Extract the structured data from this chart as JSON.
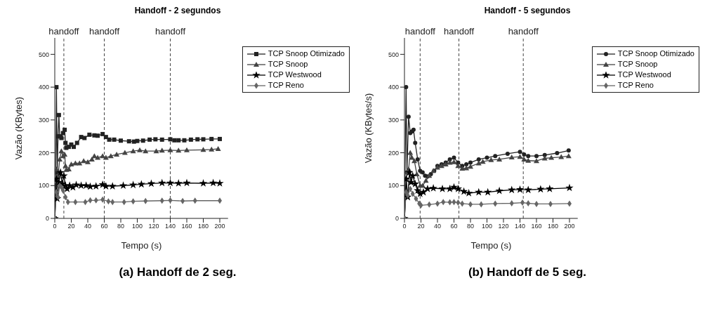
{
  "chart_data": [
    {
      "type": "line",
      "title": "Handoff - 2 segundos",
      "xlabel": "Tempo (s)",
      "ylabel": "Vazão (KBytes)",
      "xlim": [
        0,
        210
      ],
      "xticks": [
        0,
        20,
        40,
        60,
        80,
        100,
        120,
        140,
        160,
        180,
        200
      ],
      "ylim": [
        0,
        550
      ],
      "yticks": [
        0,
        100,
        200,
        300,
        400,
        500
      ],
      "legend": "top right",
      "grid": false,
      "annotations": [
        "(a) Handoff de 2 seg."
      ],
      "ref_lines": [
        {
          "axis": "x",
          "value": 11,
          "label": "handoff",
          "line_style": "dashed"
        },
        {
          "axis": "x",
          "value": 60,
          "label": "handoff",
          "line_style": "dashed"
        },
        {
          "axis": "x",
          "value": 140,
          "label": "handoff",
          "line_style": "dashed"
        }
      ],
      "series": [
        {
          "name": "TCP Snoop Otimizado",
          "color": "#222222",
          "marker": "square",
          "x": [
            0,
            1,
            2,
            3,
            4,
            5,
            6,
            8,
            10,
            12,
            13,
            14,
            17,
            20,
            23,
            27,
            32,
            36,
            42,
            48,
            52,
            58,
            62,
            66,
            72,
            80,
            90,
            96,
            100,
            107,
            115,
            122,
            130,
            140,
            145,
            150,
            157,
            165,
            173,
            180,
            190,
            200
          ],
          "values": [
            0,
            100,
            400,
            140,
            250,
            315,
            250,
            245,
            260,
            270,
            230,
            215,
            218,
            225,
            218,
            230,
            248,
            245,
            255,
            253,
            252,
            257,
            248,
            240,
            240,
            237,
            235,
            234,
            236,
            237,
            240,
            241,
            240,
            241,
            238,
            238,
            238,
            240,
            241,
            241,
            242,
            242
          ]
        },
        {
          "name": "TCP Snoop",
          "color": "#444444",
          "marker": "triangle",
          "x": [
            0,
            2,
            4,
            6,
            8,
            10,
            12,
            13,
            14,
            17,
            20,
            25,
            30,
            35,
            40,
            45,
            48,
            52,
            58,
            62,
            68,
            75,
            85,
            95,
            103,
            110,
            123,
            130,
            140,
            150,
            160,
            180,
            190,
            198
          ],
          "values": [
            0,
            150,
            130,
            180,
            205,
            190,
            195,
            160,
            148,
            150,
            165,
            168,
            168,
            175,
            172,
            180,
            190,
            185,
            190,
            185,
            190,
            195,
            200,
            205,
            208,
            205,
            205,
            207,
            208,
            207,
            208,
            209,
            210,
            212
          ]
        },
        {
          "name": "TCP Westwood",
          "color": "#000000",
          "marker": "star",
          "x": [
            0,
            2,
            3,
            5,
            7,
            9,
            11,
            13,
            15,
            18,
            22,
            26,
            32,
            38,
            43,
            50,
            58,
            62,
            70,
            83,
            95,
            105,
            117,
            130,
            140,
            150,
            160,
            180,
            192,
            200
          ],
          "values": [
            0,
            120,
            60,
            110,
            140,
            105,
            130,
            100,
            90,
            100,
            95,
            102,
            100,
            100,
            97,
            98,
            103,
            98,
            98,
            100,
            102,
            104,
            106,
            108,
            108,
            107,
            108,
            107,
            108,
            107
          ]
        },
        {
          "name": "TCP Reno",
          "color": "#666666",
          "marker": "diamond",
          "x": [
            0,
            2,
            4,
            6,
            8,
            10,
            13,
            16,
            25,
            37,
            43,
            50,
            58,
            65,
            70,
            84,
            95,
            110,
            130,
            140,
            155,
            170,
            200
          ],
          "values": [
            0,
            80,
            65,
            100,
            95,
            85,
            65,
            50,
            50,
            50,
            55,
            55,
            57,
            52,
            50,
            50,
            52,
            53,
            54,
            55,
            53,
            54,
            54
          ]
        }
      ]
    },
    {
      "type": "line",
      "title": "Handoff - 5 segundos",
      "xlabel": "Tempo (s)",
      "ylabel": "Vazão (KBytes/s)",
      "xlim": [
        0,
        210
      ],
      "xticks": [
        0,
        20,
        40,
        60,
        80,
        100,
        120,
        140,
        160,
        180,
        200
      ],
      "ylim": [
        0,
        550
      ],
      "yticks": [
        0,
        100,
        200,
        300,
        400,
        500
      ],
      "legend": "top right",
      "grid": false,
      "annotations": [
        "(b) Handoff de 5 seg."
      ],
      "ref_lines": [
        {
          "axis": "x",
          "value": 19,
          "label": "handoff",
          "line_style": "dashed"
        },
        {
          "axis": "x",
          "value": 66,
          "label": "handoff",
          "line_style": "dashed"
        },
        {
          "axis": "x",
          "value": 144,
          "label": "handoff",
          "line_style": "dashed"
        }
      ],
      "series": [
        {
          "name": "TCP Snoop Otimizado",
          "color": "#222222",
          "marker": "circle",
          "x": [
            0,
            2,
            3,
            5,
            7,
            9,
            11,
            13,
            16,
            19,
            22,
            25,
            28,
            32,
            36,
            40,
            45,
            50,
            55,
            60,
            65,
            70,
            75,
            80,
            90,
            100,
            110,
            125,
            140,
            145,
            150,
            160,
            170,
            185,
            199
          ],
          "values": [
            0,
            400,
            140,
            310,
            260,
            265,
            270,
            230,
            180,
            145,
            140,
            130,
            128,
            135,
            145,
            160,
            165,
            170,
            180,
            185,
            170,
            160,
            165,
            170,
            180,
            185,
            190,
            197,
            203,
            195,
            190,
            190,
            193,
            199,
            207
          ]
        },
        {
          "name": "TCP Snoop",
          "color": "#444444",
          "marker": "triangle",
          "x": [
            0,
            3,
            5,
            7,
            9,
            12,
            15,
            19,
            22,
            26,
            30,
            35,
            40,
            45,
            50,
            55,
            60,
            65,
            70,
            75,
            80,
            90,
            95,
            105,
            115,
            130,
            140,
            145,
            150,
            160,
            170,
            178,
            190,
            199
          ],
          "values": [
            0,
            140,
            150,
            200,
            185,
            175,
            135,
            100,
            100,
            115,
            130,
            145,
            155,
            160,
            165,
            170,
            172,
            160,
            152,
            153,
            158,
            168,
            173,
            178,
            180,
            186,
            188,
            180,
            176,
            175,
            183,
            185,
            187,
            190
          ]
        },
        {
          "name": "TCP Westwood",
          "color": "#000000",
          "marker": "star",
          "x": [
            0,
            2,
            4,
            6,
            8,
            10,
            13,
            16,
            19,
            23,
            28,
            35,
            46,
            55,
            60,
            65,
            72,
            78,
            90,
            101,
            115,
            130,
            140,
            150,
            165,
            176,
            200
          ],
          "values": [
            0,
            120,
            65,
            140,
            110,
            130,
            105,
            85,
            75,
            80,
            90,
            92,
            90,
            90,
            95,
            90,
            82,
            77,
            80,
            80,
            84,
            87,
            88,
            87,
            89,
            90,
            93
          ]
        },
        {
          "name": "TCP Reno",
          "color": "#666666",
          "marker": "diamond",
          "x": [
            0,
            2,
            4,
            7,
            10,
            14,
            18,
            20,
            30,
            40,
            47,
            55,
            60,
            65,
            70,
            80,
            93,
            110,
            130,
            143,
            150,
            160,
            177,
            200
          ],
          "values": [
            0,
            80,
            70,
            90,
            75,
            60,
            45,
            40,
            42,
            45,
            50,
            49,
            50,
            48,
            45,
            43,
            43,
            45,
            46,
            48,
            46,
            44,
            44,
            45
          ]
        }
      ]
    }
  ]
}
